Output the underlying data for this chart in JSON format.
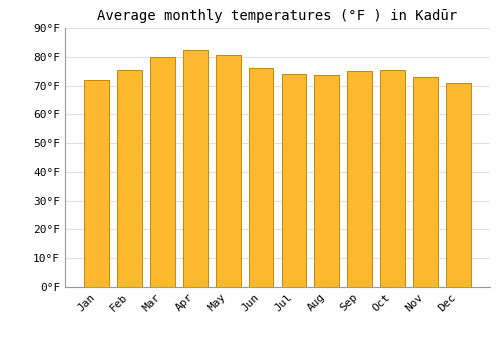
{
  "title": "Average monthly temperatures (°F ) in Kadūr",
  "months": [
    "Jan",
    "Feb",
    "Mar",
    "Apr",
    "May",
    "Jun",
    "Jul",
    "Aug",
    "Sep",
    "Oct",
    "Nov",
    "Dec"
  ],
  "values": [
    72,
    75.5,
    80,
    82.5,
    80.5,
    76,
    74,
    73.5,
    75,
    75.5,
    73,
    71
  ],
  "bar_color": "#FDB92E",
  "bar_edge_color": "#C8860A",
  "background_color": "#FFFFFF",
  "grid_color": "#E0E0E0",
  "ylim": [
    0,
    90
  ],
  "yticks": [
    0,
    10,
    20,
    30,
    40,
    50,
    60,
    70,
    80,
    90
  ],
  "title_fontsize": 10,
  "tick_fontsize": 8,
  "font_family": "monospace"
}
